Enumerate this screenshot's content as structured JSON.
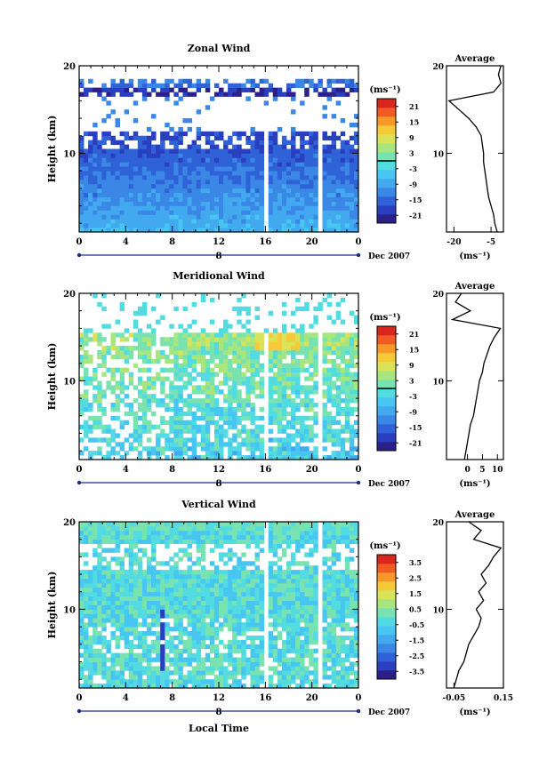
{
  "figure": {
    "x_axis_title": "Local Time",
    "date_label": "Dec 2007",
    "day_label": "8",
    "colorbar_unit": "(ms⁻¹)"
  },
  "colormap": [
    "#2c1f8a",
    "#2a3fbf",
    "#2e62d6",
    "#3a87e6",
    "#43a9ef",
    "#46c6f0",
    "#52dbe0",
    "#78e3b0",
    "#a8e67d",
    "#d9e35a",
    "#f6c936",
    "#f9982a",
    "#f05a23",
    "#d7261b"
  ],
  "chart_data": [
    {
      "type": "heatmap",
      "title": "Zonal Wind",
      "xlabel": "",
      "ylabel": "Height (km)",
      "xlim": [
        0,
        24
      ],
      "ylim": [
        1,
        20
      ],
      "x_ticks": [
        "0",
        "4",
        "8",
        "12",
        "16",
        "20",
        "0"
      ],
      "x_tick_values": [
        0,
        4,
        8,
        12,
        16,
        20,
        24
      ],
      "y_ticks": [
        "10",
        "20"
      ],
      "y_tick_values": [
        10,
        20
      ],
      "colorbar": {
        "range": [
          -24,
          24
        ],
        "ticks": [
          "21",
          "15",
          "9",
          "3",
          "-3",
          "-9",
          "-15",
          "-21"
        ],
        "tick_values": [
          21,
          15,
          9,
          3,
          -3,
          -9,
          -15,
          -21
        ],
        "contour_line_value": 0
      },
      "data_gaps_hours": [
        [
          2.2,
          2.5
        ],
        [
          5.3,
          5.6
        ],
        [
          15.8,
          16.3
        ],
        [
          20.6,
          20.9
        ]
      ],
      "profile": {
        "title": "Average",
        "xlabel": "(ms⁻¹)",
        "xlim": [
          -23,
          0
        ],
        "x_ticks": [
          "-20",
          "-5"
        ],
        "x_tick_values": [
          -20,
          -5
        ],
        "y_ticks": [
          "10",
          "20"
        ],
        "y_tick_values": [
          10,
          20
        ],
        "height_km": [
          1,
          2,
          3,
          4,
          5,
          6,
          7,
          8,
          9,
          10,
          11,
          12,
          13,
          14,
          15,
          16,
          17,
          18,
          19,
          20
        ],
        "values": [
          -2.5,
          -3.5,
          -4,
          -5,
          -6,
          -6.5,
          -7,
          -7.5,
          -8,
          -8,
          -8.5,
          -9,
          -11,
          -14,
          -18,
          -22,
          -4,
          -1,
          -2,
          -1
        ]
      }
    },
    {
      "type": "heatmap",
      "title": "Meridional Wind",
      "xlabel": "",
      "ylabel": "Height (km)",
      "xlim": [
        0,
        24
      ],
      "ylim": [
        1,
        20
      ],
      "x_ticks": [
        "0",
        "4",
        "8",
        "12",
        "16",
        "20",
        "0"
      ],
      "x_tick_values": [
        0,
        4,
        8,
        12,
        16,
        20,
        24
      ],
      "y_ticks": [
        "10",
        "20"
      ],
      "y_tick_values": [
        10,
        20
      ],
      "colorbar": {
        "range": [
          -24,
          24
        ],
        "ticks": [
          "21",
          "15",
          "9",
          "3",
          "-3",
          "-9",
          "-15",
          "-21"
        ],
        "tick_values": [
          21,
          15,
          9,
          3,
          -3,
          -9,
          -15,
          -21
        ],
        "contour_line_value": 0
      },
      "data_gaps_hours": [
        [
          15.8,
          16.3
        ],
        [
          20.6,
          20.9
        ]
      ],
      "profile": {
        "title": "Average",
        "xlabel": "(ms⁻¹)",
        "xlim": [
          -7,
          12
        ],
        "x_ticks": [
          "0",
          "5",
          "10"
        ],
        "x_tick_values": [
          0,
          5,
          10
        ],
        "y_ticks": [
          "10",
          "20"
        ],
        "y_tick_values": [
          10,
          20
        ],
        "height_km": [
          1,
          2,
          3,
          4,
          5,
          6,
          7,
          8,
          9,
          10,
          11,
          12,
          13,
          14,
          15,
          16,
          17,
          18,
          19,
          20
        ],
        "values": [
          -1,
          -0.5,
          0,
          0.5,
          1,
          2,
          2.5,
          3,
          3.5,
          4,
          5,
          5.5,
          6.5,
          7.5,
          9,
          11,
          -5,
          1,
          -4,
          -2
        ]
      }
    },
    {
      "type": "heatmap",
      "title": "Vertical Wind",
      "xlabel": "Local Time",
      "ylabel": "Height (km)",
      "xlim": [
        0,
        24
      ],
      "ylim": [
        1,
        20
      ],
      "x_ticks": [
        "0",
        "4",
        "8",
        "12",
        "16",
        "20",
        "0"
      ],
      "x_tick_values": [
        0,
        4,
        8,
        12,
        16,
        20,
        24
      ],
      "y_ticks": [
        "10",
        "20"
      ],
      "y_tick_values": [
        10,
        20
      ],
      "colorbar": {
        "range": [
          -4,
          4
        ],
        "ticks": [
          "3.5",
          "2.5",
          "1.5",
          "0.5",
          "-0.5",
          "-1.5",
          "-2.5",
          "-3.5"
        ],
        "tick_values": [
          3.5,
          2.5,
          1.5,
          0.5,
          -0.5,
          -1.5,
          -2.5,
          -3.5
        ],
        "contour_line_value": null
      },
      "data_gaps_hours": [
        [
          15.8,
          16.3
        ],
        [
          20.6,
          20.9
        ]
      ],
      "profile": {
        "title": "Average",
        "xlabel": "(ms⁻¹)",
        "xlim": [
          -0.08,
          0.15
        ],
        "x_ticks": [
          "-0.05",
          "0.15"
        ],
        "x_tick_values": [
          -0.05,
          0.15
        ],
        "y_ticks": [
          "10",
          "20"
        ],
        "y_tick_values": [
          10,
          20
        ],
        "height_km": [
          1,
          2,
          3,
          4,
          5,
          6,
          7,
          8,
          9,
          10,
          11,
          12,
          13,
          14,
          15,
          16,
          17,
          18,
          19,
          20
        ],
        "values": [
          -0.05,
          -0.04,
          -0.03,
          -0.01,
          0.0,
          0.01,
          0.03,
          0.05,
          0.06,
          0.04,
          0.07,
          0.05,
          0.08,
          0.06,
          0.09,
          0.11,
          0.14,
          0.03,
          0.06,
          0.01
        ]
      }
    }
  ]
}
